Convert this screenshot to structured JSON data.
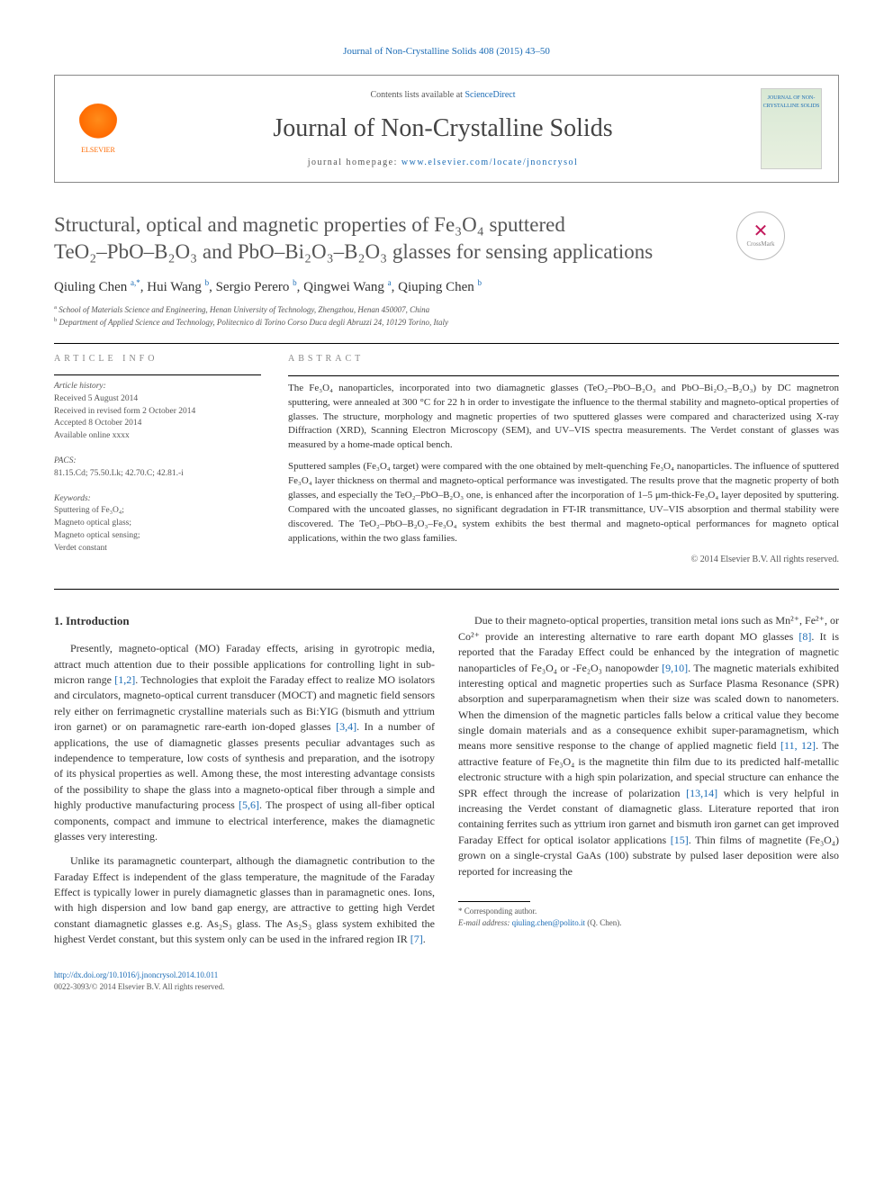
{
  "citation": "Journal of Non-Crystalline Solids 408 (2015) 43–50",
  "header": {
    "contents_prefix": "Contents lists available at ",
    "contents_link": "ScienceDirect",
    "journal_title": "Journal of Non-Crystalline Solids",
    "homepage_prefix": "journal homepage: ",
    "homepage_url": "www.elsevier.com/locate/jnoncrysol",
    "elsevier_label": "ELSEVIER",
    "cover_label": "JOURNAL OF NON-CRYSTALLINE SOLIDS"
  },
  "crossmark_label": "CrossMark",
  "title_line1": "Structural, optical and magnetic properties of Fe₃O₄ sputtered",
  "title_line2": "TeO₂–PbO–B₂O₃ and PbO–Bi₂O₃–B₂O₃ glasses for sensing applications",
  "authors_html": "Qiuling Chen <sup>a,*</sup>, Hui Wang <sup>b</sup>, Sergio Perero <sup>b</sup>, Qingwei Wang <sup>a</sup>, Qiuping Chen <sup>b</sup>",
  "affiliations": {
    "a": "School of Materials Science and Engineering, Henan University of Technology, Zhengzhou, Henan 450007, China",
    "b": "Department of Applied Science and Technology, Politecnico di Torino Corso Duca degli Abruzzi 24, 10129 Torino, Italy"
  },
  "meta": {
    "info_heading": "article info",
    "history_label": "Article history:",
    "history": [
      "Received 5 August 2014",
      "Received in revised form 2 October 2014",
      "Accepted 8 October 2014",
      "Available online xxxx"
    ],
    "pacs_label": "PACS:",
    "pacs": "81.15.Cd; 75.50.Lk; 42.70.C; 42.81.-i",
    "keywords_label": "Keywords:",
    "keywords": [
      "Sputtering of Fe₃O₄;",
      "Magneto optical glass;",
      "Magneto optical sensing;",
      "Verdet constant"
    ]
  },
  "abstract": {
    "heading": "abstract",
    "p1": "The Fe₃O₄ nanoparticles, incorporated into two diamagnetic glasses (TeO₂–PbO–B₂O₃ and PbO–Bi₂O₃–B₂O₃) by DC magnetron sputtering, were annealed at 300 °C for 22 h in order to investigate the influence to the thermal stability and magneto-optical properties of glasses. The structure, morphology and magnetic properties of two sputtered glasses were compared and characterized using X-ray Diffraction (XRD), Scanning Electron Microscopy (SEM), and UV–VIS spectra measurements. The Verdet constant of glasses was measured by a home-made optical bench.",
    "p2": "Sputtered samples (Fe₃O₄ target) were compared with the one obtained by melt-quenching Fe₃O₄ nanoparticles. The influence of sputtered Fe₃O₄ layer thickness on thermal and magneto-optical performance was investigated. The results prove that the magnetic property of both glasses, and especially the TeO₂–PbO–B₂O₃ one, is enhanced after the incorporation of 1–5 μm-thick-Fe₃O₄ layer deposited by sputtering. Compared with the uncoated glasses, no significant degradation in FT-IR transmittance, UV–VIS absorption and thermal stability were discovered. The TeO₂–PbO–B₂O₃–Fe₃O₄ system exhibits the best thermal and magneto-optical performances for magneto optical applications, within the two glass families.",
    "copyright": "© 2014 Elsevier B.V. All rights reserved."
  },
  "section1": {
    "heading": "1. Introduction",
    "paragraphs": [
      "Presently, magneto-optical (MO) Faraday effects, arising in gyrotropic media, attract much attention due to their possible applications for controlling light in sub-micron range <span class=\"ref-link\">[1,2]</span>. Technologies that exploit the Faraday effect to realize MO isolators and circulators, magneto-optical current transducer (MOCT) and magnetic field sensors rely either on ferrimagnetic crystalline materials such as Bi:YIG (bismuth and yttrium iron garnet) or on paramagnetic rare-earth ion-doped glasses <span class=\"ref-link\">[3,4]</span>. In a number of applications, the use of diamagnetic glasses presents peculiar advantages such as independence to temperature, low costs of synthesis and preparation, and the isotropy of its physical properties as well. Among these, the most interesting advantage consists of the possibility to shape the glass into a magneto-optical fiber through a simple and highly productive manufacturing process <span class=\"ref-link\">[5,6]</span>. The prospect of using all-fiber optical components, compact and immune to electrical interference, makes the diamagnetic glasses very interesting.",
      "Unlike its paramagnetic counterpart, although the diamagnetic contribution to the Faraday Effect is independent of the glass temperature, the magnitude of the Faraday Effect is typically lower in purely diamagnetic glasses than in paramagnetic ones. Ions, with high dispersion and low band gap energy, are attractive to getting high Verdet constant diamagnetic glasses e.g. As₂S₃ glass. The As₂S₃ glass system exhibited the highest Verdet constant, but this system only can be used in the infrared region IR <span class=\"ref-link\">[7]</span>.",
      "Due to their magneto-optical properties, transition metal ions such as Mn²⁺, Fe²⁺, or Co²⁺ provide an interesting alternative to rare earth dopant MO glasses <span class=\"ref-link\">[8]</span>. It is reported that the Faraday Effect could be enhanced by the integration of magnetic nanoparticles of Fe₃O₄ or -Fe₂O₃ nanopowder <span class=\"ref-link\">[9,10]</span>. The magnetic materials exhibited interesting optical and magnetic properties such as Surface Plasma Resonance (SPR) absorption and superparamagnetism when their size was scaled down to nanometers. When the dimension of the magnetic particles falls below a critical value they become single domain materials and as a consequence exhibit super-paramagnetism, which means more sensitive response to the change of applied magnetic field <span class=\"ref-link\">[11, 12]</span>. The attractive feature of Fe₃O₄ is the magnetite thin film due to its predicted half-metallic electronic structure with a high spin polarization, and special structure can enhance the SPR effect through the increase of polarization <span class=\"ref-link\">[13,14]</span> which is very helpful in increasing the Verdet constant of diamagnetic glass. Literature reported that iron containing ferrites such as yttrium iron garnet and bismuth iron garnet can get improved Faraday Effect for optical isolator applications <span class=\"ref-link\">[15]</span>. Thin films of magnetite (Fe₃O₄) grown on a single-crystal GaAs (100) substrate by pulsed laser deposition were also reported for increasing the"
    ]
  },
  "footnote": {
    "corr": "* Corresponding author.",
    "email_label": "E-mail address: ",
    "email": "qiuling.chen@polito.it",
    "email_suffix": " (Q. Chen)."
  },
  "bottom": {
    "doi": "http://dx.doi.org/10.1016/j.jnoncrysol.2014.10.011",
    "issn": "0022-3093/© 2014 Elsevier B.V. All rights reserved."
  },
  "colors": {
    "link": "#1a6bb5",
    "text": "#333333",
    "muted": "#555555",
    "orange": "#ff6a00"
  }
}
